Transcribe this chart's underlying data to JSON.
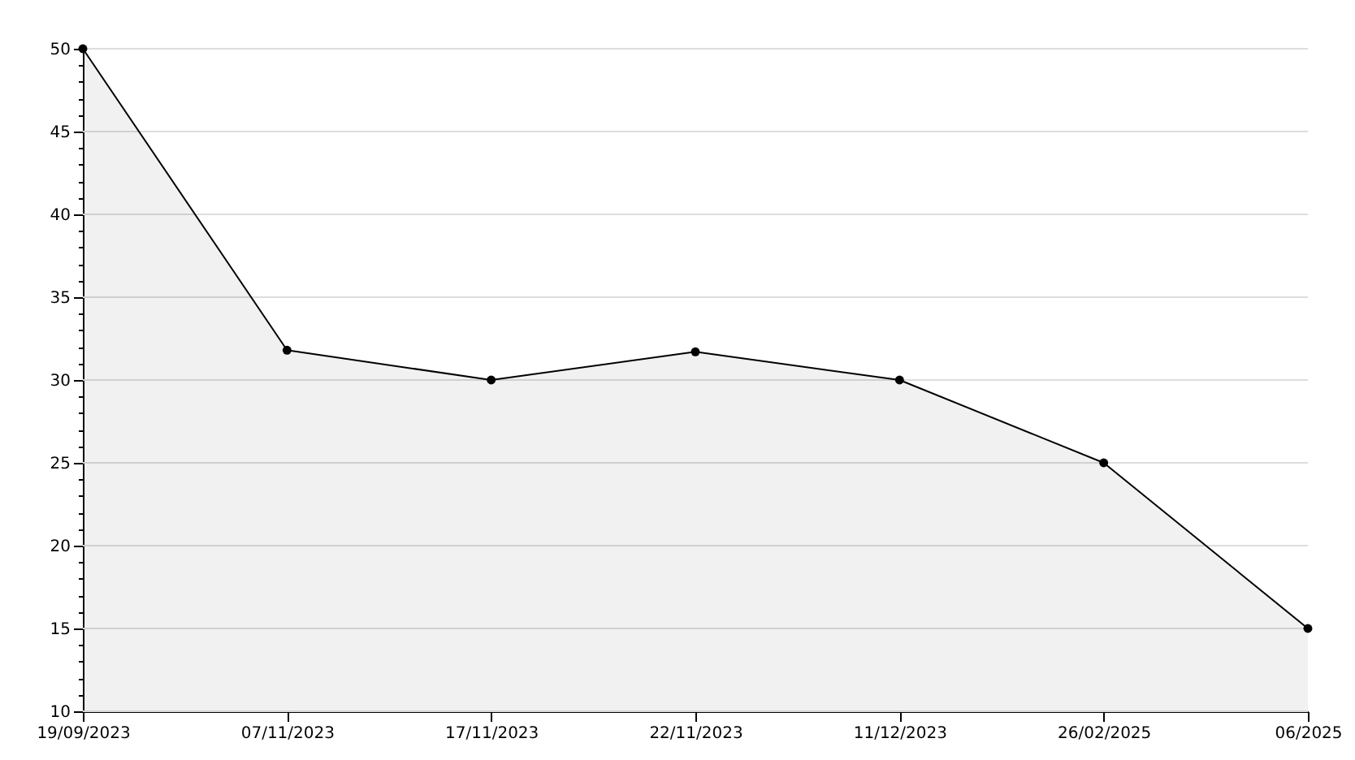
{
  "chart_data": {
    "type": "area",
    "categories": [
      "19/09/2023",
      "07/11/2023",
      "17/11/2023",
      "22/11/2023",
      "11/12/2023",
      "26/02/2025",
      "06/2025"
    ],
    "series": [
      {
        "color": "#000000",
        "values": [
          50,
          31.8,
          30,
          31.7,
          30,
          25,
          15
        ]
      }
    ],
    "ylim": [
      10,
      50
    ],
    "yticks": [
      10,
      {
        "value": 11,
        "label": null
      },
      {
        "value": 12,
        "label": null
      },
      {
        "value": 13,
        "label": null
      },
      {
        "value": 14,
        "label": null
      },
      15,
      {
        "value": 16,
        "label": null
      },
      {
        "value": 17,
        "label": null
      },
      {
        "value": 18,
        "label": null
      },
      {
        "value": 19,
        "label": null
      },
      20,
      {
        "value": 21,
        "label": null
      },
      {
        "value": 22,
        "label": null
      },
      {
        "value": 23,
        "label": null
      },
      {
        "value": 24,
        "label": null
      },
      25,
      {
        "value": 26,
        "label": null
      },
      {
        "value": 27,
        "label": null
      },
      {
        "value": 28,
        "label": null
      },
      {
        "value": 29,
        "label": null
      },
      30,
      {
        "value": 31,
        "label": null
      },
      {
        "value": 32,
        "label": null
      },
      {
        "value": 33,
        "label": null
      },
      {
        "value": 34,
        "label": null
      },
      35,
      {
        "value": 36,
        "label": null
      },
      {
        "value": 37,
        "label": null
      },
      {
        "value": 38,
        "label": null
      },
      {
        "value": 39,
        "label": null
      },
      40,
      {
        "value": 41,
        "label": null
      },
      {
        "value": 42,
        "label": null
      },
      {
        "value": 43,
        "label": null
      },
      {
        "value": 44,
        "label": null
      },
      45,
      {
        "value": 46,
        "label": null
      },
      {
        "value": 47,
        "label": null
      },
      {
        "value": 48,
        "label": null
      },
      {
        "value": 49,
        "label": null
      },
      50
    ],
    "grid": "y",
    "marker": "circle"
  }
}
